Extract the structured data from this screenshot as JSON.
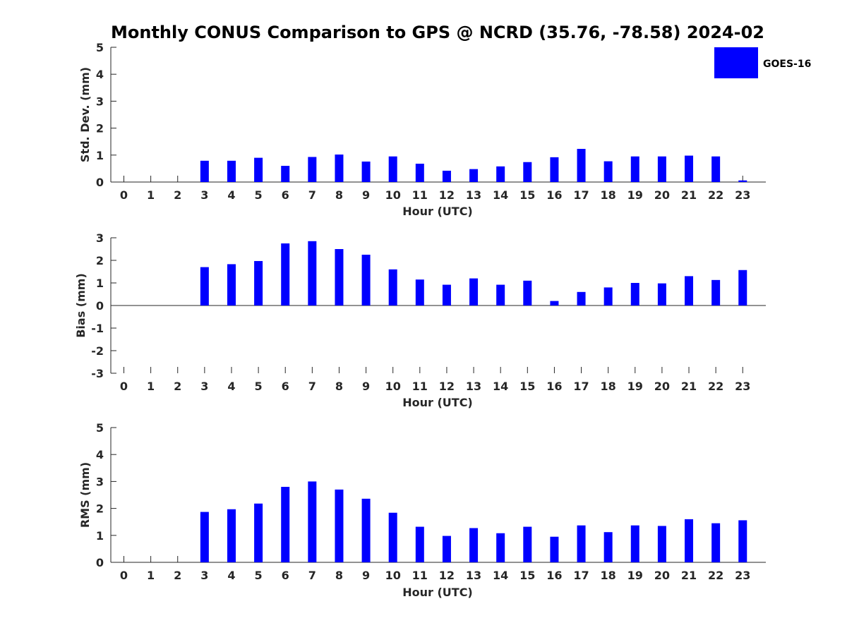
{
  "title": "Monthly CONUS Comparison to GPS @ NCRD (35.76, -78.58) 2024-02",
  "legend": {
    "label": "GOES-16",
    "color": "#0000ff",
    "placement": "top-right"
  },
  "chart_data": [
    {
      "type": "bar",
      "ylabel": "Std. Dev. (mm)",
      "xlabel": "Hour (UTC)",
      "ylim": [
        0,
        5
      ],
      "yticks": [
        0,
        1,
        2,
        3,
        4,
        5
      ],
      "categories": [
        "0",
        "1",
        "2",
        "3",
        "4",
        "5",
        "6",
        "7",
        "8",
        "9",
        "10",
        "11",
        "12",
        "13",
        "14",
        "15",
        "16",
        "17",
        "18",
        "19",
        "20",
        "21",
        "22",
        "23"
      ],
      "series": [
        {
          "name": "GOES-16",
          "color": "#0000ff",
          "values": [
            null,
            null,
            null,
            0.79,
            0.79,
            0.9,
            0.6,
            0.93,
            1.02,
            0.76,
            0.95,
            0.68,
            0.42,
            0.48,
            0.58,
            0.74,
            0.92,
            1.23,
            0.77,
            0.95,
            0.95,
            0.98,
            0.95,
            0.06
          ]
        }
      ]
    },
    {
      "type": "bar",
      "ylabel": "Bias (mm)",
      "xlabel": "Hour (UTC)",
      "ylim": [
        -3,
        3
      ],
      "yticks": [
        -3,
        -2,
        -1,
        0,
        1,
        2,
        3
      ],
      "categories": [
        "0",
        "1",
        "2",
        "3",
        "4",
        "5",
        "6",
        "7",
        "8",
        "9",
        "10",
        "11",
        "12",
        "13",
        "14",
        "15",
        "16",
        "17",
        "18",
        "19",
        "20",
        "21",
        "22",
        "23"
      ],
      "series": [
        {
          "name": "GOES-16",
          "color": "#0000ff",
          "values": [
            null,
            null,
            null,
            1.7,
            1.83,
            1.97,
            2.75,
            2.85,
            2.5,
            2.25,
            1.6,
            1.15,
            0.92,
            1.2,
            0.92,
            1.1,
            0.2,
            0.6,
            0.8,
            1.0,
            0.98,
            1.3,
            1.13,
            1.57
          ]
        }
      ]
    },
    {
      "type": "bar",
      "ylabel": "RMS (mm)",
      "xlabel": "Hour (UTC)",
      "ylim": [
        0,
        5
      ],
      "yticks": [
        0,
        1,
        2,
        3,
        4,
        5
      ],
      "categories": [
        "0",
        "1",
        "2",
        "3",
        "4",
        "5",
        "6",
        "7",
        "8",
        "9",
        "10",
        "11",
        "12",
        "13",
        "14",
        "15",
        "16",
        "17",
        "18",
        "19",
        "20",
        "21",
        "22",
        "23"
      ],
      "series": [
        {
          "name": "GOES-16",
          "color": "#0000ff",
          "values": [
            null,
            null,
            null,
            1.87,
            1.97,
            2.18,
            2.8,
            3.0,
            2.7,
            2.36,
            1.84,
            1.32,
            0.98,
            1.27,
            1.08,
            1.32,
            0.95,
            1.37,
            1.12,
            1.37,
            1.35,
            1.6,
            1.45,
            1.56
          ]
        }
      ]
    }
  ]
}
